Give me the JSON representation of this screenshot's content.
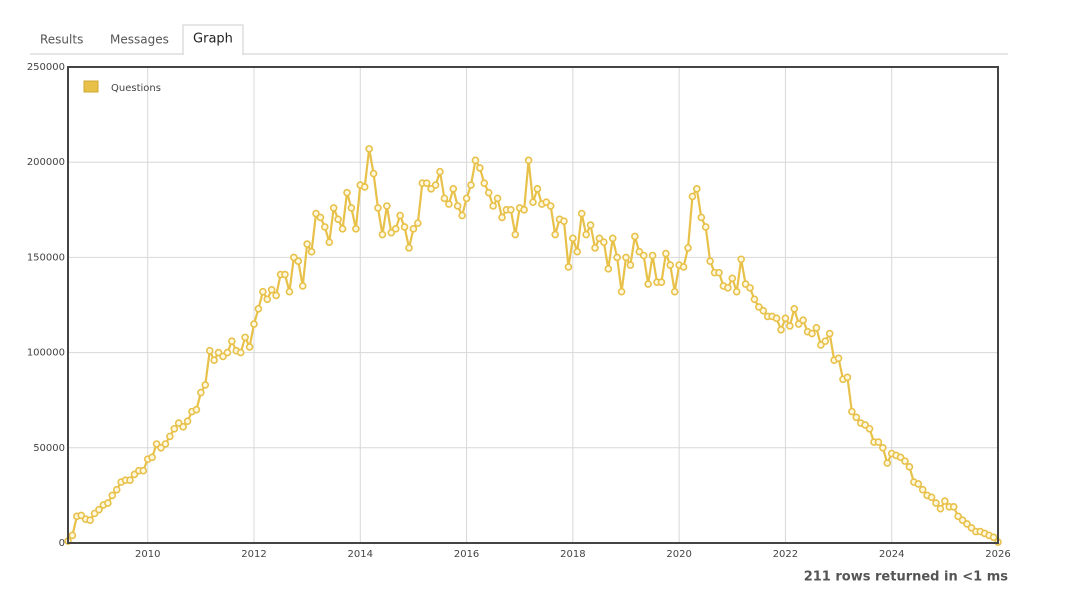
{
  "tabs": [
    "Results",
    "Messages",
    "Graph"
  ],
  "active_tab": 2,
  "footer": "211 rows returned in <1 ms",
  "chart_data": {
    "type": "line",
    "legend": "top-left",
    "grid": true,
    "xlim": [
      2008.5,
      2026
    ],
    "xticks": [
      2010,
      2012,
      2014,
      2016,
      2018,
      2020,
      2022,
      2024,
      2026
    ],
    "ylim": [
      0,
      250000
    ],
    "yticks": [
      0,
      50000,
      100000,
      150000,
      200000,
      250000
    ],
    "x": [
      2008.5,
      2008.583,
      2008.667,
      2008.75,
      2008.833,
      2008.917,
      2009,
      2009.083,
      2009.167,
      2009.25,
      2009.333,
      2009.417,
      2009.5,
      2009.583,
      2009.667,
      2009.75,
      2009.833,
      2009.917,
      2010,
      2010.083,
      2010.167,
      2010.25,
      2010.333,
      2010.417,
      2010.5,
      2010.583,
      2010.667,
      2010.75,
      2010.833,
      2010.917,
      2011,
      2011.083,
      2011.167,
      2011.25,
      2011.333,
      2011.417,
      2011.5,
      2011.583,
      2011.667,
      2011.75,
      2011.833,
      2011.917,
      2012,
      2012.083,
      2012.167,
      2012.25,
      2012.333,
      2012.417,
      2012.5,
      2012.583,
      2012.667,
      2012.75,
      2012.833,
      2012.917,
      2013,
      2013.083,
      2013.167,
      2013.25,
      2013.333,
      2013.417,
      2013.5,
      2013.583,
      2013.667,
      2013.75,
      2013.833,
      2013.917,
      2014,
      2014.083,
      2014.167,
      2014.25,
      2014.333,
      2014.417,
      2014.5,
      2014.583,
      2014.667,
      2014.75,
      2014.833,
      2014.917,
      2015,
      2015.083,
      2015.167,
      2015.25,
      2015.333,
      2015.417,
      2015.5,
      2015.583,
      2015.667,
      2015.75,
      2015.833,
      2015.917,
      2016,
      2016.083,
      2016.167,
      2016.25,
      2016.333,
      2016.417,
      2016.5,
      2016.583,
      2016.667,
      2016.75,
      2016.833,
      2016.917,
      2017,
      2017.083,
      2017.167,
      2017.25,
      2017.333,
      2017.417,
      2017.5,
      2017.583,
      2017.667,
      2017.75,
      2017.833,
      2017.917,
      2018,
      2018.083,
      2018.167,
      2018.25,
      2018.333,
      2018.417,
      2018.5,
      2018.583,
      2018.667,
      2018.75,
      2018.833,
      2018.917,
      2019,
      2019.083,
      2019.167,
      2019.25,
      2019.333,
      2019.417,
      2019.5,
      2019.583,
      2019.667,
      2019.75,
      2019.833,
      2019.917,
      2020,
      2020.083,
      2020.167,
      2020.25,
      2020.333,
      2020.417,
      2020.5,
      2020.583,
      2020.667,
      2020.75,
      2020.833,
      2020.917,
      2021,
      2021.083,
      2021.167,
      2021.25,
      2021.333,
      2021.417,
      2021.5,
      2021.583,
      2021.667,
      2021.75,
      2021.833,
      2021.917,
      2022,
      2022.083,
      2022.167,
      2022.25,
      2022.333,
      2022.417,
      2022.5,
      2022.583,
      2022.667,
      2022.75,
      2022.833,
      2022.917,
      2023,
      2023.083,
      2023.167,
      2023.25,
      2023.333,
      2023.417,
      2023.5,
      2023.583,
      2023.667,
      2023.75,
      2023.833,
      2023.917,
      2024,
      2024.083,
      2024.167,
      2024.25,
      2024.333,
      2024.417,
      2024.5,
      2024.583,
      2024.667,
      2024.75,
      2024.833,
      2024.917,
      2025,
      2025.083,
      2025.167,
      2025.25,
      2025.333,
      2025.417,
      2025.5,
      2025.583,
      2025.667,
      2025.75,
      2025.833,
      2025.917,
      2026
    ],
    "series": [
      {
        "name": "Questions",
        "color": "#e8c14a",
        "values": [
          1000,
          4000,
          14000,
          14500,
          12500,
          12000,
          15500,
          17500,
          20000,
          21000,
          25000,
          28000,
          32000,
          33000,
          33000,
          36000,
          38000,
          38000,
          44000,
          45000,
          52000,
          50000,
          52000,
          56000,
          60000,
          63000,
          61000,
          64000,
          69000,
          70000,
          79000,
          83000,
          101000,
          96000,
          100000,
          98000,
          100000,
          106000,
          101000,
          100000,
          108000,
          103000,
          115000,
          123000,
          132000,
          128000,
          133000,
          130000,
          141000,
          141000,
          132000,
          150000,
          148000,
          135000,
          157000,
          153000,
          173000,
          171000,
          166000,
          158000,
          176000,
          170000,
          165000,
          184000,
          176000,
          165000,
          188000,
          187000,
          207000,
          194000,
          176000,
          162000,
          177000,
          163000,
          165000,
          172000,
          166000,
          155000,
          165000,
          168000,
          189000,
          189000,
          186000,
          188000,
          195000,
          181000,
          178000,
          186000,
          177000,
          172000,
          181000,
          188000,
          201000,
          197000,
          189000,
          184000,
          177000,
          181000,
          171000,
          175000,
          175000,
          162000,
          176000,
          175000,
          201000,
          179000,
          186000,
          178000,
          179000,
          177000,
          162000,
          170000,
          169000,
          145000,
          160000,
          153000,
          173000,
          162000,
          167000,
          155000,
          160000,
          158000,
          144000,
          160000,
          150000,
          132000,
          150000,
          146000,
          161000,
          153000,
          151000,
          136000,
          151000,
          137000,
          137000,
          152000,
          146000,
          132000,
          146000,
          145000,
          155000,
          182000,
          186000,
          171000,
          166000,
          148000,
          142000,
          142000,
          135000,
          134000,
          139000,
          132000,
          149000,
          136000,
          134000,
          128000,
          124000,
          122000,
          119000,
          119000,
          118000,
          112000,
          118000,
          114000,
          123000,
          115000,
          117000,
          111000,
          110000,
          113000,
          104000,
          106000,
          110000,
          96000,
          97000,
          86000,
          87000,
          69000,
          66000,
          63000,
          62000,
          60000,
          53000,
          53000,
          50000,
          42000,
          47000,
          46000,
          45000,
          43000,
          40000,
          32000,
          31000,
          28000,
          25000,
          24000,
          21000,
          18000,
          22000,
          19000,
          19000,
          14000,
          12000,
          10000,
          8000,
          6000,
          6000,
          5000,
          4000,
          3000,
          500
        ]
      }
    ]
  }
}
